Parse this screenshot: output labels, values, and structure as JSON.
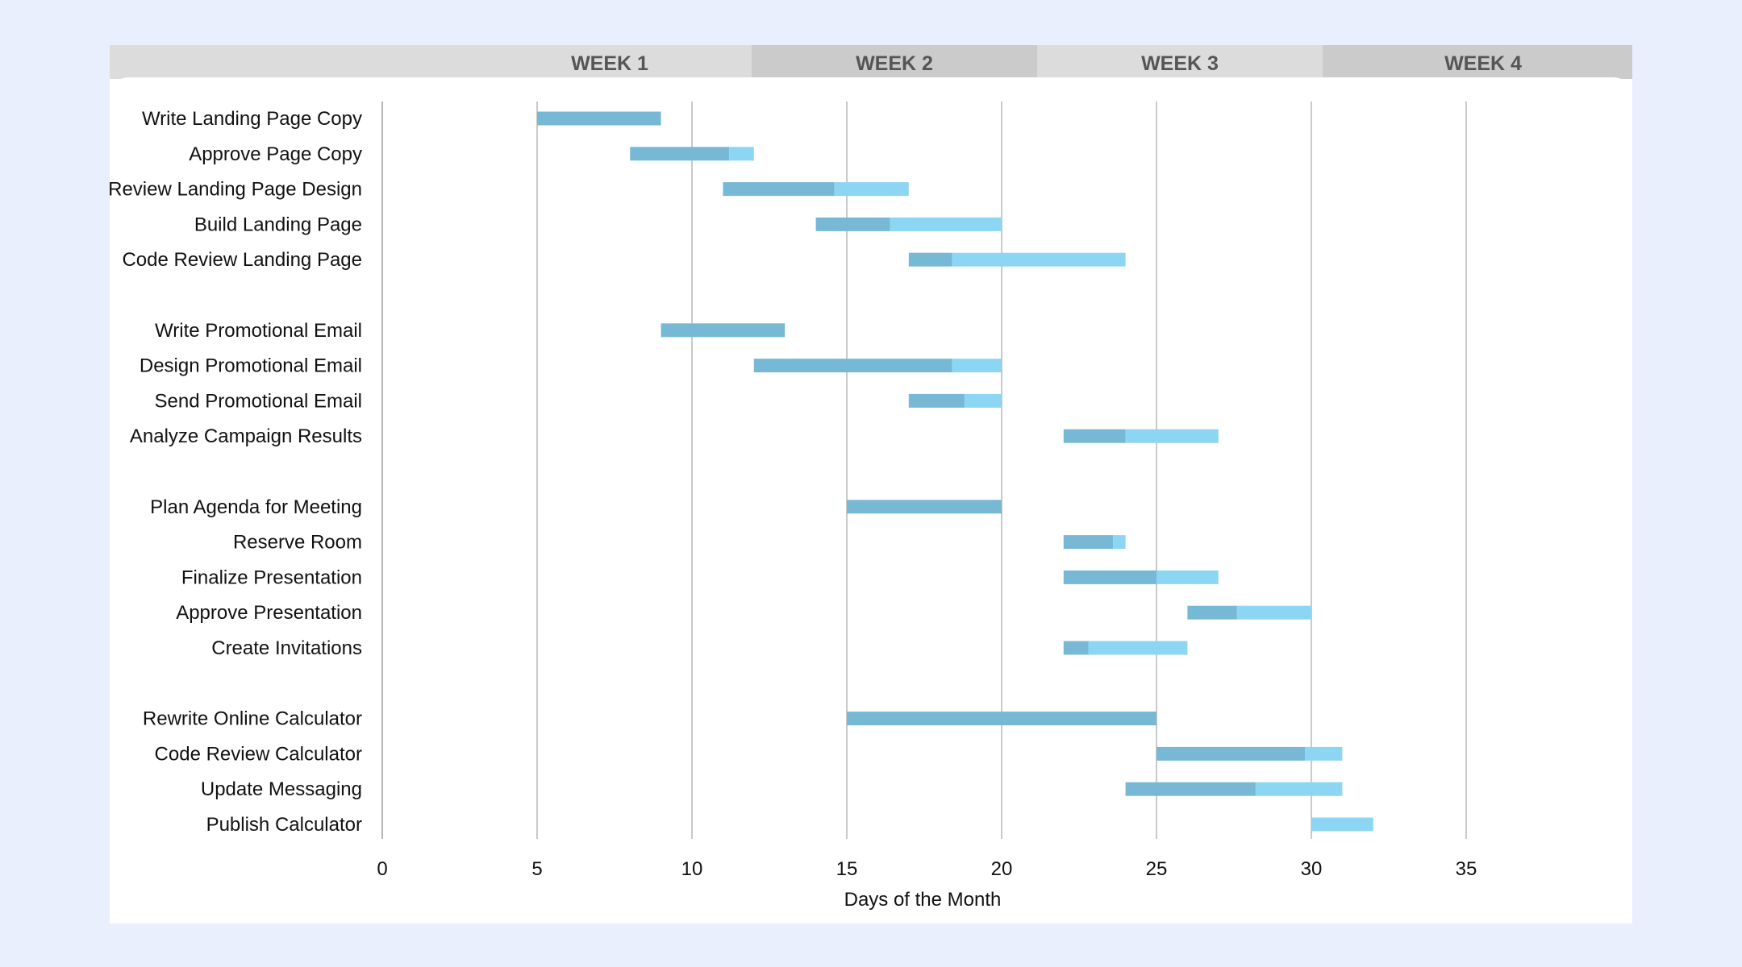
{
  "chart_data": {
    "type": "bar",
    "orientation": "horizontal",
    "stacked": true,
    "xlabel": "Days of the Month",
    "xlim": [
      0,
      38
    ],
    "xticks": [
      0,
      5,
      10,
      15,
      20,
      25,
      30,
      35
    ],
    "grid": true,
    "legend": "none",
    "weeks": [
      "WEEK 1",
      "WEEK 2",
      "WEEK 3",
      "WEEK 4"
    ],
    "tasks": [
      {
        "name": "Write Landing Page Copy",
        "start": 5,
        "complete": 4,
        "remaining": 0
      },
      {
        "name": "Approve Page Copy",
        "start": 8,
        "complete": 3.2,
        "remaining": 0.8
      },
      {
        "name": "Review Landing Page Design",
        "start": 11,
        "complete": 3.6,
        "remaining": 2.4
      },
      {
        "name": "Build Landing Page",
        "start": 14,
        "complete": 2.4,
        "remaining": 3.6
      },
      {
        "name": "Code Review Landing Page",
        "start": 17,
        "complete": 1.4,
        "remaining": 5.6
      },
      {
        "name": "",
        "start": null,
        "complete": 0,
        "remaining": 0
      },
      {
        "name": "Write Promotional Email",
        "start": 9,
        "complete": 4,
        "remaining": 0
      },
      {
        "name": "Design Promotional Email",
        "start": 12,
        "complete": 6.4,
        "remaining": 1.6
      },
      {
        "name": "Send Promotional Email",
        "start": 17,
        "complete": 1.8,
        "remaining": 1.2
      },
      {
        "name": "Analyze Campaign Results",
        "start": 22,
        "complete": 2,
        "remaining": 3
      },
      {
        "name": "",
        "start": null,
        "complete": 0,
        "remaining": 0
      },
      {
        "name": "Plan Agenda for Meeting",
        "start": 15,
        "complete": 5,
        "remaining": 0
      },
      {
        "name": "Reserve Room",
        "start": 22,
        "complete": 1.6,
        "remaining": 0.4
      },
      {
        "name": "Finalize Presentation",
        "start": 22,
        "complete": 3,
        "remaining": 2
      },
      {
        "name": "Approve Presentation",
        "start": 26,
        "complete": 1.6,
        "remaining": 2.4
      },
      {
        "name": "Create Invitations",
        "start": 22,
        "complete": 0.8,
        "remaining": 3.2
      },
      {
        "name": "",
        "start": null,
        "complete": 0,
        "remaining": 0
      },
      {
        "name": "Rewrite Online Calculator",
        "start": 15,
        "complete": 10,
        "remaining": 0
      },
      {
        "name": "Code Review Calculator",
        "start": 25,
        "complete": 4.8,
        "remaining": 1.2
      },
      {
        "name": "Update Messaging",
        "start": 24,
        "complete": 4.2,
        "remaining": 2.8
      },
      {
        "name": "Publish Calculator",
        "start": 30,
        "complete": 0,
        "remaining": 2
      }
    ]
  },
  "colors": {
    "complete": "#77b9d5",
    "remaining": "#8dd6f3",
    "grid": "#c9c9c9",
    "axis": "#b5b5b5",
    "week_light": "#dcdcdc",
    "week_dark": "#cbcbcb"
  }
}
